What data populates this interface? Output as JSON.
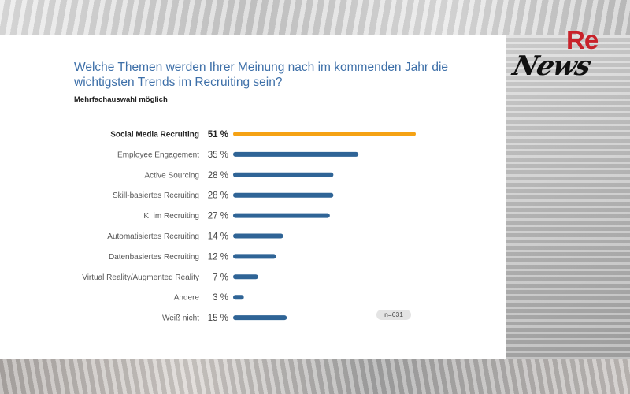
{
  "logo": {
    "re": "Re",
    "news": "News"
  },
  "header": {
    "title": "Welche Themen werden Ihrer Meinung nach im kommenden Jahr die wichtigsten Trends im Recruiting sein?",
    "subtitle": "Mehrfachauswahl möglich"
  },
  "note": "n=631",
  "colors": {
    "highlight": "#f5a214",
    "bar": "#2f6496"
  },
  "chart_data": {
    "type": "bar",
    "orientation": "horizontal",
    "unit": "%",
    "xlim": [
      0,
      60
    ],
    "grid": false,
    "categories": [
      "Social Media Recruiting",
      "Employee Engagement",
      "Active Sourcing",
      "Skill-basiertes Recruiting",
      "KI im Recruiting",
      "Automatisiertes Recruiting",
      "Datenbasiertes Recruiting",
      "Virtual Reality/Augmented Reality",
      "Andere",
      "Weiß nicht"
    ],
    "values": [
      51,
      35,
      28,
      28,
      27,
      14,
      12,
      7,
      3,
      15
    ],
    "value_labels": [
      "51 %",
      "35 %",
      "28 %",
      "28 %",
      "27 %",
      "14 %",
      "12 %",
      "7 %",
      "3 %",
      "15 %"
    ],
    "highlighted_index": 0
  }
}
